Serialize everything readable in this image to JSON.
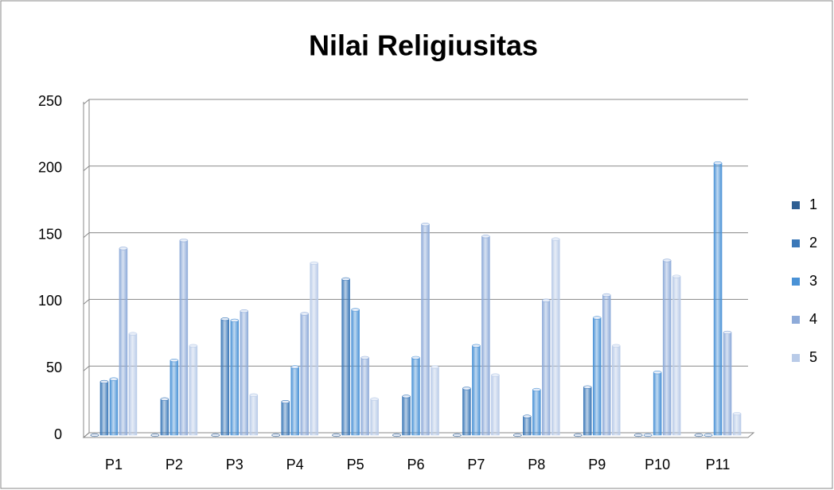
{
  "chart_data": {
    "type": "bar",
    "title": "Nilai Religiusitas",
    "categories": [
      "P1",
      "P2",
      "P3",
      "P4",
      "P5",
      "P6",
      "P7",
      "P8",
      "P9",
      "P10",
      "P11"
    ],
    "series": [
      {
        "name": "1",
        "color": "#2f5f93",
        "values": [
          0,
          0,
          0,
          0,
          0,
          0,
          0,
          0,
          0,
          0,
          0
        ]
      },
      {
        "name": "2",
        "color": "#3b78b8",
        "values": [
          40,
          27,
          87,
          25,
          117,
          29,
          35,
          14,
          36,
          0,
          0
        ]
      },
      {
        "name": "3",
        "color": "#4a92d6",
        "values": [
          42,
          56,
          86,
          51,
          94,
          58,
          67,
          34,
          88,
          47,
          204
        ]
      },
      {
        "name": "4",
        "color": "#8eabd9",
        "values": [
          140,
          146,
          93,
          91,
          58,
          158,
          149,
          101,
          105,
          131,
          77
        ]
      },
      {
        "name": "5",
        "color": "#b9cbe8",
        "values": [
          76,
          67,
          30,
          129,
          27,
          51,
          45,
          147,
          67,
          119,
          16
        ]
      }
    ],
    "ylim": [
      0,
      250
    ],
    "yticks": [
      0,
      50,
      100,
      150,
      200,
      250
    ],
    "grid": true,
    "legend": "right"
  }
}
